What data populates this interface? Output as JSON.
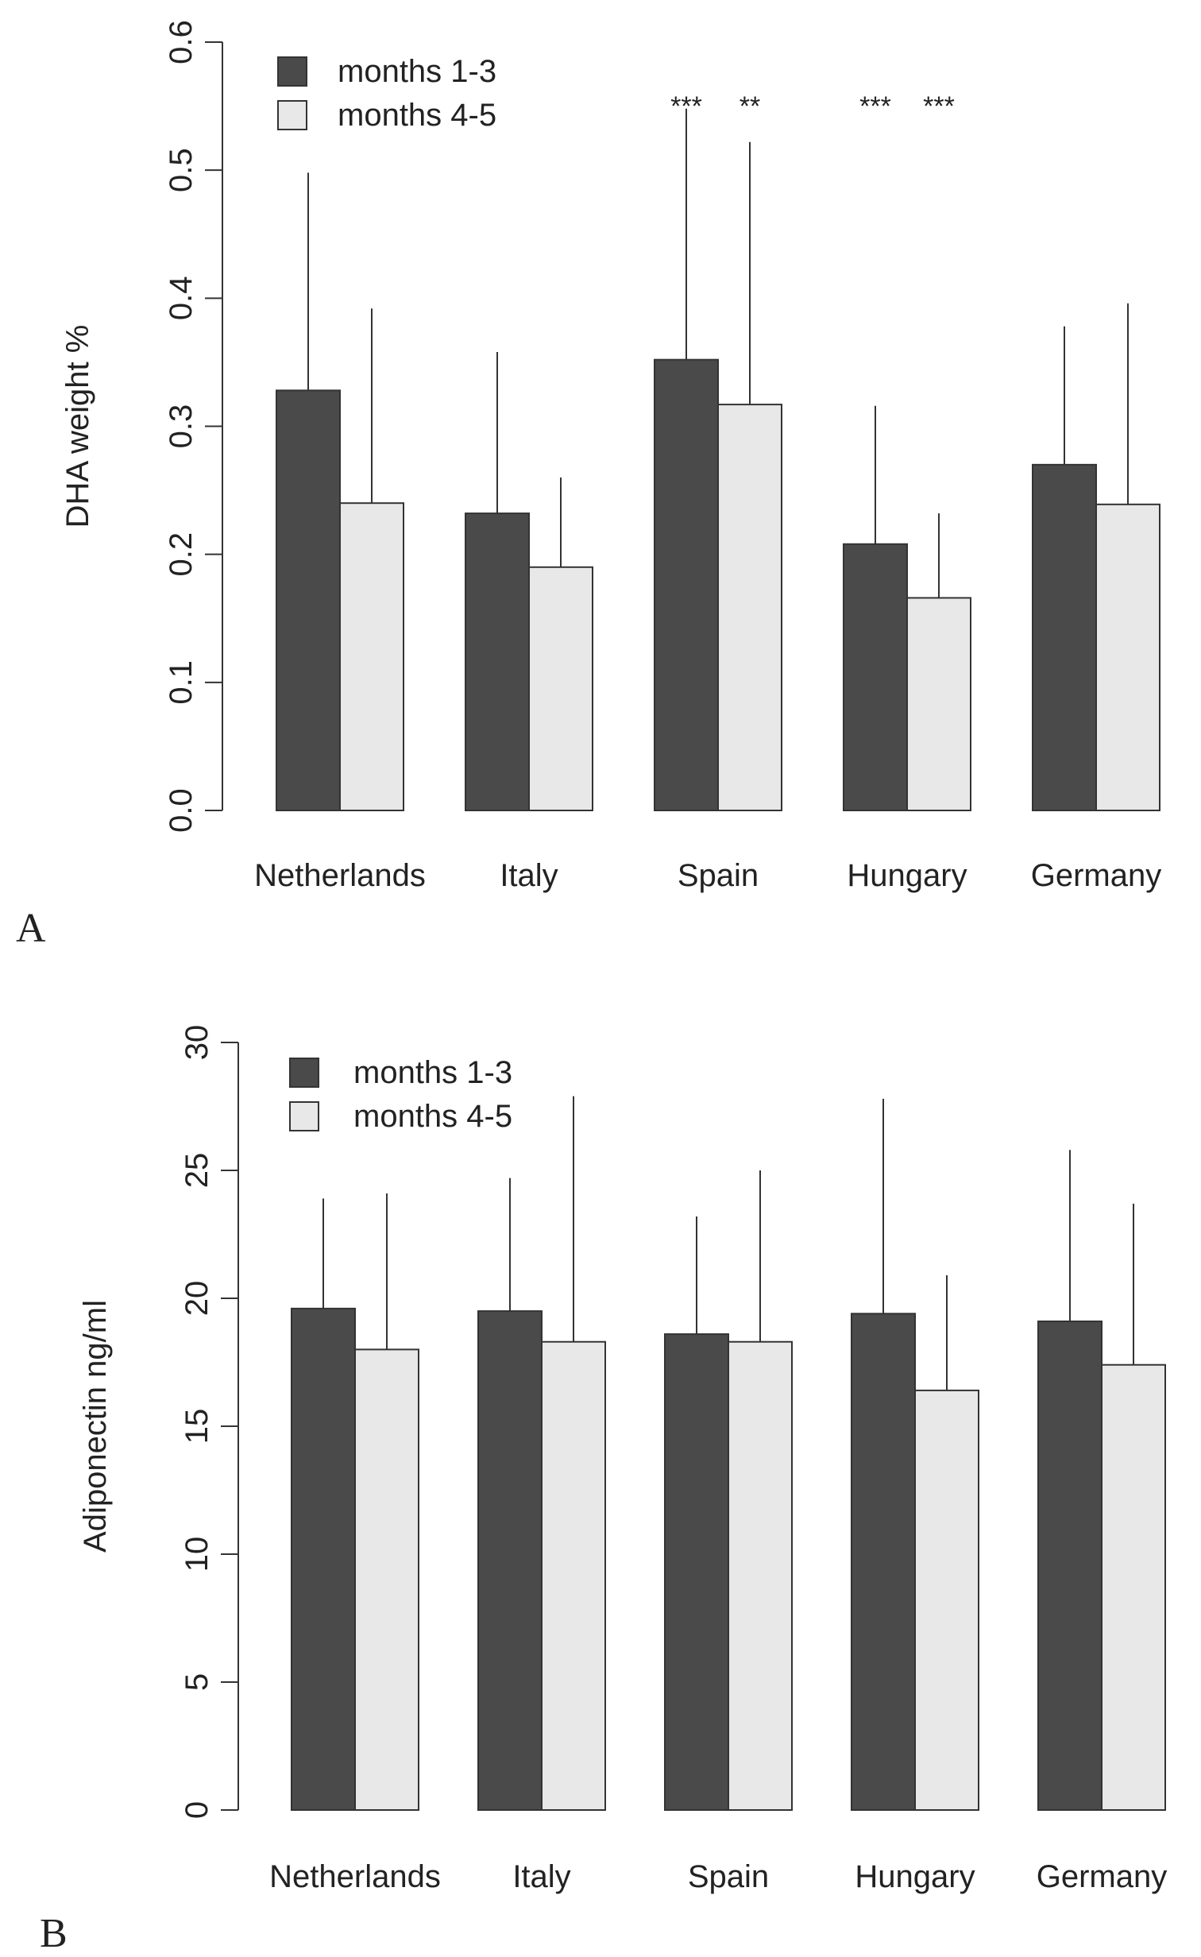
{
  "colors": {
    "dark": "#4a4a4a",
    "light": "#e8e8e8",
    "stroke": "#333333"
  },
  "chart_data": [
    {
      "type": "bar",
      "panel_label": "A",
      "ylabel": "DHA weight %",
      "xlabel": "",
      "ylim": [
        0,
        0.6
      ],
      "yticks": [
        0,
        0.1,
        0.2,
        0.3,
        0.4,
        0.5,
        0.6
      ],
      "ytick_labels": [
        "0.0",
        "0.1",
        "0.2",
        "0.3",
        "0.4",
        "0.5",
        "0.6"
      ],
      "categories": [
        "Netherlands",
        "Italy",
        "Spain",
        "Hungary",
        "Germany"
      ],
      "legend_position": "top-left",
      "grid": false,
      "series": [
        {
          "name": "months 1-3",
          "color": "#4a4a4a",
          "values": [
            0.328,
            0.232,
            0.352,
            0.208,
            0.27
          ],
          "error_upper": [
            0.498,
            0.358,
            0.548,
            0.316,
            0.378
          ],
          "annotations": [
            "",
            "",
            "***",
            "***",
            ""
          ]
        },
        {
          "name": "months 4-5",
          "color": "#e8e8e8",
          "values": [
            0.24,
            0.19,
            0.317,
            0.166,
            0.239
          ],
          "error_upper": [
            0.392,
            0.26,
            0.522,
            0.232,
            0.396
          ],
          "annotations": [
            "",
            "",
            "**",
            "***",
            ""
          ]
        }
      ]
    },
    {
      "type": "bar",
      "panel_label": "B",
      "ylabel": "Adiponectin ng/ml",
      "xlabel": "",
      "ylim": [
        0,
        30
      ],
      "yticks": [
        0,
        5,
        10,
        15,
        20,
        25,
        30
      ],
      "ytick_labels": [
        "0",
        "5",
        "10",
        "15",
        "20",
        "25",
        "30"
      ],
      "categories": [
        "Netherlands",
        "Italy",
        "Spain",
        "Hungary",
        "Germany"
      ],
      "legend_position": "top-left",
      "grid": false,
      "series": [
        {
          "name": "months 1-3",
          "color": "#4a4a4a",
          "values": [
            19.6,
            19.5,
            18.6,
            19.4,
            19.1
          ],
          "error_upper": [
            23.9,
            24.7,
            23.2,
            27.8,
            25.8
          ],
          "annotations": [
            "",
            "",
            "",
            "",
            ""
          ]
        },
        {
          "name": "months 4-5",
          "color": "#e8e8e8",
          "values": [
            18.0,
            18.3,
            18.3,
            16.4,
            17.4
          ],
          "error_upper": [
            24.1,
            27.9,
            25.0,
            20.9,
            23.7
          ],
          "annotations": [
            "",
            "",
            "",
            "",
            ""
          ]
        }
      ]
    }
  ]
}
